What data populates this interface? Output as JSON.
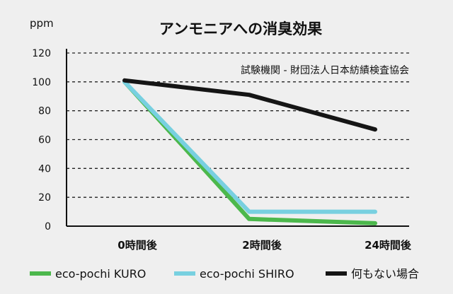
{
  "chart_data": {
    "type": "line",
    "title": "アンモニアへの消臭効果",
    "ylabel": "ppm",
    "note": "試験機関 - 財団法人日本紡績検査協会",
    "categories": [
      "0時間後",
      "2時間後",
      "24時間後"
    ],
    "ylim": [
      0,
      120
    ],
    "yticks": [
      0,
      20,
      40,
      60,
      80,
      100,
      120
    ],
    "grid": true,
    "legend_position": "bottom",
    "series": [
      {
        "name": "eco-pochi KURO",
        "values": [
          100,
          5,
          2
        ],
        "color": "#4cb84c"
      },
      {
        "name": "eco-pochi SHIRO",
        "values": [
          100,
          10,
          10
        ],
        "color": "#78d0e0"
      },
      {
        "name": "何もない場合",
        "values": [
          101,
          91,
          67
        ],
        "color": "#151515"
      }
    ]
  }
}
